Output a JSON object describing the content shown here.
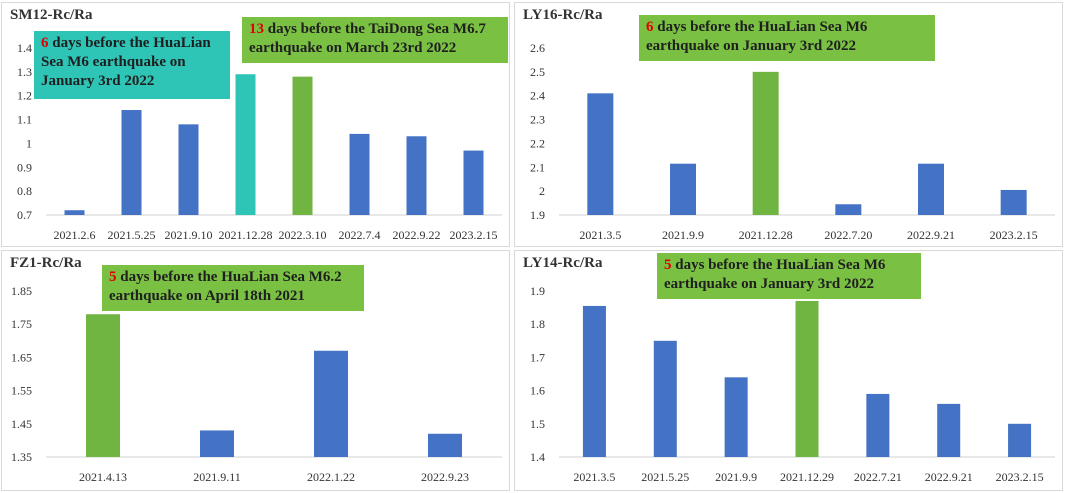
{
  "colors": {
    "bar": "#4472c4",
    "highlight_green": "#70b541",
    "highlight_teal": "#2ec4b6",
    "callout_green": "#7ac143",
    "callout_teal": "#2ec4b6",
    "number": "#e00000"
  },
  "chart_data": [
    {
      "type": "bar",
      "title": "SM12-Rc/Ra",
      "categories": [
        "2021.2.6",
        "2021.5.25",
        "2021.9.10",
        "2021.12.28",
        "2022.3.10",
        "2022.7.4",
        "2022.9.22",
        "2023.2.15"
      ],
      "values": [
        0.72,
        1.14,
        1.08,
        1.29,
        1.28,
        1.04,
        1.03,
        0.97
      ],
      "ylim": [
        0.7,
        1.4
      ],
      "yticks": [
        "0.7",
        "0.8",
        "0.9",
        "1",
        "1.1",
        "1.2",
        "1.3",
        "1.4"
      ],
      "grid": false,
      "highlights": [
        {
          "index": 3,
          "color": "teal"
        },
        {
          "index": 4,
          "color": "green"
        }
      ],
      "annotations": [
        {
          "num": "6",
          "text": " days before the HuaLian Sea M6 earthquake on January 3rd 2022",
          "color": "teal",
          "points_to": "2021.12.28"
        },
        {
          "num": "13",
          "text": " days before the TaiDong Sea M6.7 earthquake on March 23rd 2022",
          "color": "green",
          "points_to": "2022.3.10"
        }
      ]
    },
    {
      "type": "bar",
      "title": "LY16-Rc/Ra",
      "categories": [
        "2021.3.5",
        "2021.9.9",
        "2021.12.28",
        "2022.7.20",
        "2022.9.21",
        "2023.2.15"
      ],
      "values": [
        2.41,
        2.115,
        2.5,
        1.945,
        2.115,
        2.005
      ],
      "ylim": [
        1.9,
        2.6
      ],
      "yticks": [
        "1.9",
        "2",
        "2.1",
        "2.2",
        "2.3",
        "2.4",
        "2.5",
        "2.6"
      ],
      "grid": false,
      "highlights": [
        {
          "index": 2,
          "color": "green"
        }
      ],
      "annotations": [
        {
          "num": "6",
          "text": " days before the HuaLian Sea M6 earthquake on January 3rd 2022",
          "color": "green",
          "points_to": "2021.12.28"
        }
      ]
    },
    {
      "type": "bar",
      "title": "FZ1-Rc/Ra",
      "categories": [
        "2021.4.13",
        "2021.9.11",
        "2022.1.22",
        "2022.9.23"
      ],
      "values": [
        1.78,
        1.43,
        1.67,
        1.42
      ],
      "ylim": [
        1.35,
        1.85
      ],
      "yticks": [
        "1.35",
        "1.45",
        "1.55",
        "1.65",
        "1.75",
        "1.85"
      ],
      "grid": false,
      "highlights": [
        {
          "index": 0,
          "color": "green"
        }
      ],
      "annotations": [
        {
          "num": "5",
          "text": " days before the HuaLian Sea M6.2 earthquake on April 18th 2021",
          "color": "green",
          "points_to": "2021.4.13"
        }
      ]
    },
    {
      "type": "bar",
      "title": "LY14-Rc/Ra",
      "categories": [
        "2021.3.5",
        "2021.5.25",
        "2021.9.9",
        "2021.12.29",
        "2022.7.21",
        "2022.9.21",
        "2023.2.15"
      ],
      "values": [
        1.855,
        1.75,
        1.64,
        1.87,
        1.59,
        1.56,
        1.5
      ],
      "ylim": [
        1.4,
        1.9
      ],
      "yticks": [
        "1.4",
        "1.5",
        "1.6",
        "1.7",
        "1.8",
        "1.9"
      ],
      "grid": false,
      "highlights": [
        {
          "index": 3,
          "color": "green"
        }
      ],
      "annotations": [
        {
          "num": "5",
          "text": " days before the HuaLian Sea M6 earthquake on January 3rd 2022",
          "color": "green",
          "points_to": "2021.12.29"
        }
      ]
    }
  ]
}
